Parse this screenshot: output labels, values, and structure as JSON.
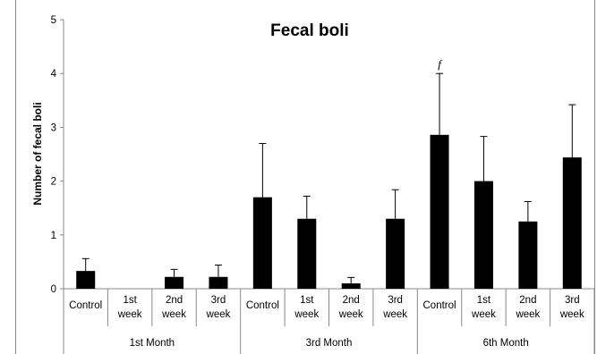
{
  "chart_data": {
    "type": "bar",
    "title": "Fecal boli",
    "ylabel": "Number of fecal boli",
    "xlabel": "",
    "ylim": [
      0,
      5
    ],
    "yticks": [
      "0",
      "1",
      "2",
      "3",
      "4",
      "5"
    ],
    "categories": [
      "Control",
      "1st week",
      "2nd week",
      "3rd week",
      "Control",
      "1st week",
      "2nd week",
      "3rd week",
      "Control",
      "1st week",
      "2nd week",
      "3rd week"
    ],
    "groups": [
      {
        "label": "1st Month",
        "count": 4
      },
      {
        "label": "3rd Month",
        "count": 4
      },
      {
        "label": "6th Month",
        "count": 4
      }
    ],
    "values": [
      0.33,
      0,
      0.22,
      0.22,
      1.7,
      1.3,
      0.1,
      1.3,
      2.86,
      2.0,
      1.25,
      2.44
    ],
    "errors": [
      0.23,
      0,
      0.14,
      0.22,
      1.0,
      0.42,
      0.11,
      0.54,
      1.14,
      0.83,
      0.37,
      0.98
    ],
    "annotations": [
      {
        "index": 8,
        "text": "f"
      }
    ],
    "bar_color": "#000000",
    "grid": false,
    "legend": "none"
  }
}
